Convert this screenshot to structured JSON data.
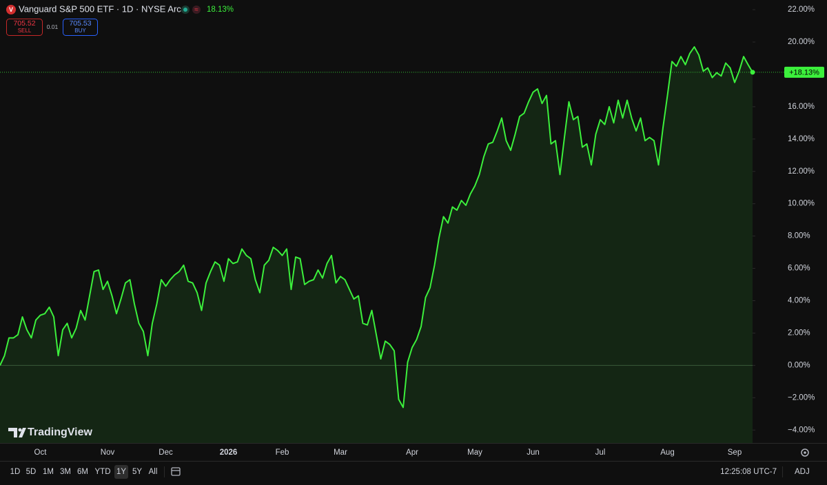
{
  "header": {
    "title": "Vanguard S&P 500 ETF · 1D · NYSE Arca",
    "change": "18.13%",
    "sell_price": "705.52",
    "sell_label": "SELL",
    "spread": "0.01",
    "buy_price": "705.53",
    "buy_label": "BUY"
  },
  "branding": "TradingView",
  "chart_data": {
    "type": "line",
    "color": "#3cf03c",
    "categories": [
      null,
      null,
      null,
      null,
      null,
      null,
      null,
      null,
      null,
      "Oct",
      null,
      null,
      null,
      null,
      null,
      null,
      null,
      null,
      null,
      null,
      null,
      null,
      null,
      null,
      "Nov",
      null,
      null,
      null,
      null,
      null,
      null,
      null,
      null,
      null,
      null,
      null,
      null,
      "Dec",
      null,
      null,
      null,
      null,
      null,
      null,
      null,
      null,
      null,
      null,
      null,
      null,
      null,
      "2026",
      null,
      null,
      null,
      null,
      null,
      null,
      null,
      null,
      null,
      null,
      null,
      "Feb",
      null,
      null,
      null,
      null,
      null,
      null,
      null,
      null,
      null,
      null,
      null,
      null,
      "Mar",
      null,
      null,
      null,
      null,
      null,
      null,
      null,
      null,
      null,
      null,
      null,
      null,
      null,
      null,
      null,
      "Apr",
      null,
      null,
      null,
      null,
      null,
      null,
      null,
      null,
      null,
      null,
      null,
      null,
      null,
      "May",
      null,
      null,
      null,
      null,
      null,
      null,
      null,
      null,
      null,
      null,
      null,
      null,
      "Jun",
      null,
      null,
      null,
      null,
      null,
      null,
      null,
      null,
      null,
      null,
      null,
      null,
      null,
      null,
      "Jul",
      null,
      null,
      null,
      null,
      null,
      null,
      null,
      null,
      null,
      null,
      null,
      null,
      null,
      null,
      "Aug",
      null,
      null,
      null,
      null,
      null,
      null,
      null,
      null,
      null,
      null,
      null,
      null,
      null,
      null,
      "Sep",
      null,
      null,
      null,
      null
    ],
    "values": [
      0,
      0.6,
      1.7,
      1.7,
      1.9,
      3.0,
      2.2,
      1.7,
      2.8,
      3.1,
      3.2,
      3.6,
      3.0,
      0.6,
      2.2,
      2.6,
      1.7,
      2.3,
      3.4,
      2.8,
      4.3,
      5.8,
      5.9,
      4.7,
      5.2,
      4.3,
      3.2,
      4.1,
      5.1,
      5.3,
      3.8,
      2.6,
      2.1,
      0.6,
      2.6,
      3.8,
      5.3,
      4.9,
      5.3,
      5.6,
      5.8,
      6.2,
      5.2,
      5.1,
      4.5,
      3.4,
      5.1,
      5.8,
      6.4,
      6.2,
      5.2,
      6.6,
      6.3,
      6.4,
      7.2,
      6.8,
      6.6,
      5.3,
      4.5,
      6.2,
      6.5,
      7.3,
      7.1,
      6.8,
      7.2,
      4.7,
      6.7,
      6.6,
      5.0,
      5.2,
      5.3,
      5.9,
      5.4,
      6.3,
      6.8,
      5.1,
      5.5,
      5.3,
      4.7,
      4.1,
      4.3,
      2.6,
      2.5,
      3.4,
      1.9,
      0.4,
      1.5,
      1.3,
      0.9,
      -2.1,
      -2.6,
      0.2,
      1.1,
      1.6,
      2.4,
      4.2,
      4.8,
      6.2,
      7.9,
      9.2,
      8.8,
      9.8,
      9.6,
      10.2,
      9.9,
      10.6,
      11.1,
      11.8,
      12.9,
      13.7,
      13.8,
      14.5,
      15.3,
      13.9,
      13.3,
      14.3,
      15.4,
      15.6,
      16.3,
      16.9,
      17.1,
      16.2,
      16.7,
      13.7,
      13.9,
      11.8,
      14.1,
      16.3,
      15.2,
      15.4,
      13.5,
      13.7,
      12.4,
      14.3,
      15.2,
      14.9,
      16.0,
      15.0,
      16.4,
      15.3,
      16.4,
      15.3,
      14.5,
      15.3,
      13.9,
      14.1,
      13.9,
      12.4,
      14.7,
      16.7,
      18.8,
      18.5,
      19.1,
      18.6,
      19.3,
      19.7,
      19.2,
      18.2,
      18.4,
      17.8,
      18.1,
      17.9,
      18.7,
      18.4,
      17.5,
      18.2,
      19.1,
      18.6,
      18.13
    ],
    "last_value_label": "+18.13%",
    "ylim": [
      -4.8,
      22.6
    ],
    "yticks": [
      {
        "value": -4,
        "label": "−4.00%"
      },
      {
        "value": -2,
        "label": "−2.00%"
      },
      {
        "value": 0,
        "label": "0.00%"
      },
      {
        "value": 2,
        "label": "2.00%"
      },
      {
        "value": 4,
        "label": "4.00%"
      },
      {
        "value": 6,
        "label": "6.00%"
      },
      {
        "value": 8,
        "label": "8.00%"
      },
      {
        "value": 10,
        "label": "10.00%"
      },
      {
        "value": 12,
        "label": "12.00%"
      },
      {
        "value": 14,
        "label": "14.00%"
      },
      {
        "value": 16,
        "label": "16.00%"
      },
      {
        "value": 20,
        "label": "20.00%"
      },
      {
        "value": 22,
        "label": "22.00%"
      }
    ],
    "grid": false
  },
  "toolbar": {
    "ranges": [
      {
        "label": "1D"
      },
      {
        "label": "5D"
      },
      {
        "label": "1M"
      },
      {
        "label": "3M"
      },
      {
        "label": "6M"
      },
      {
        "label": "YTD"
      },
      {
        "label": "1Y",
        "selected": true
      },
      {
        "label": "5Y"
      },
      {
        "label": "All"
      }
    ],
    "time": "12:25:08 UTC-7",
    "adjust": "ADJ"
  }
}
